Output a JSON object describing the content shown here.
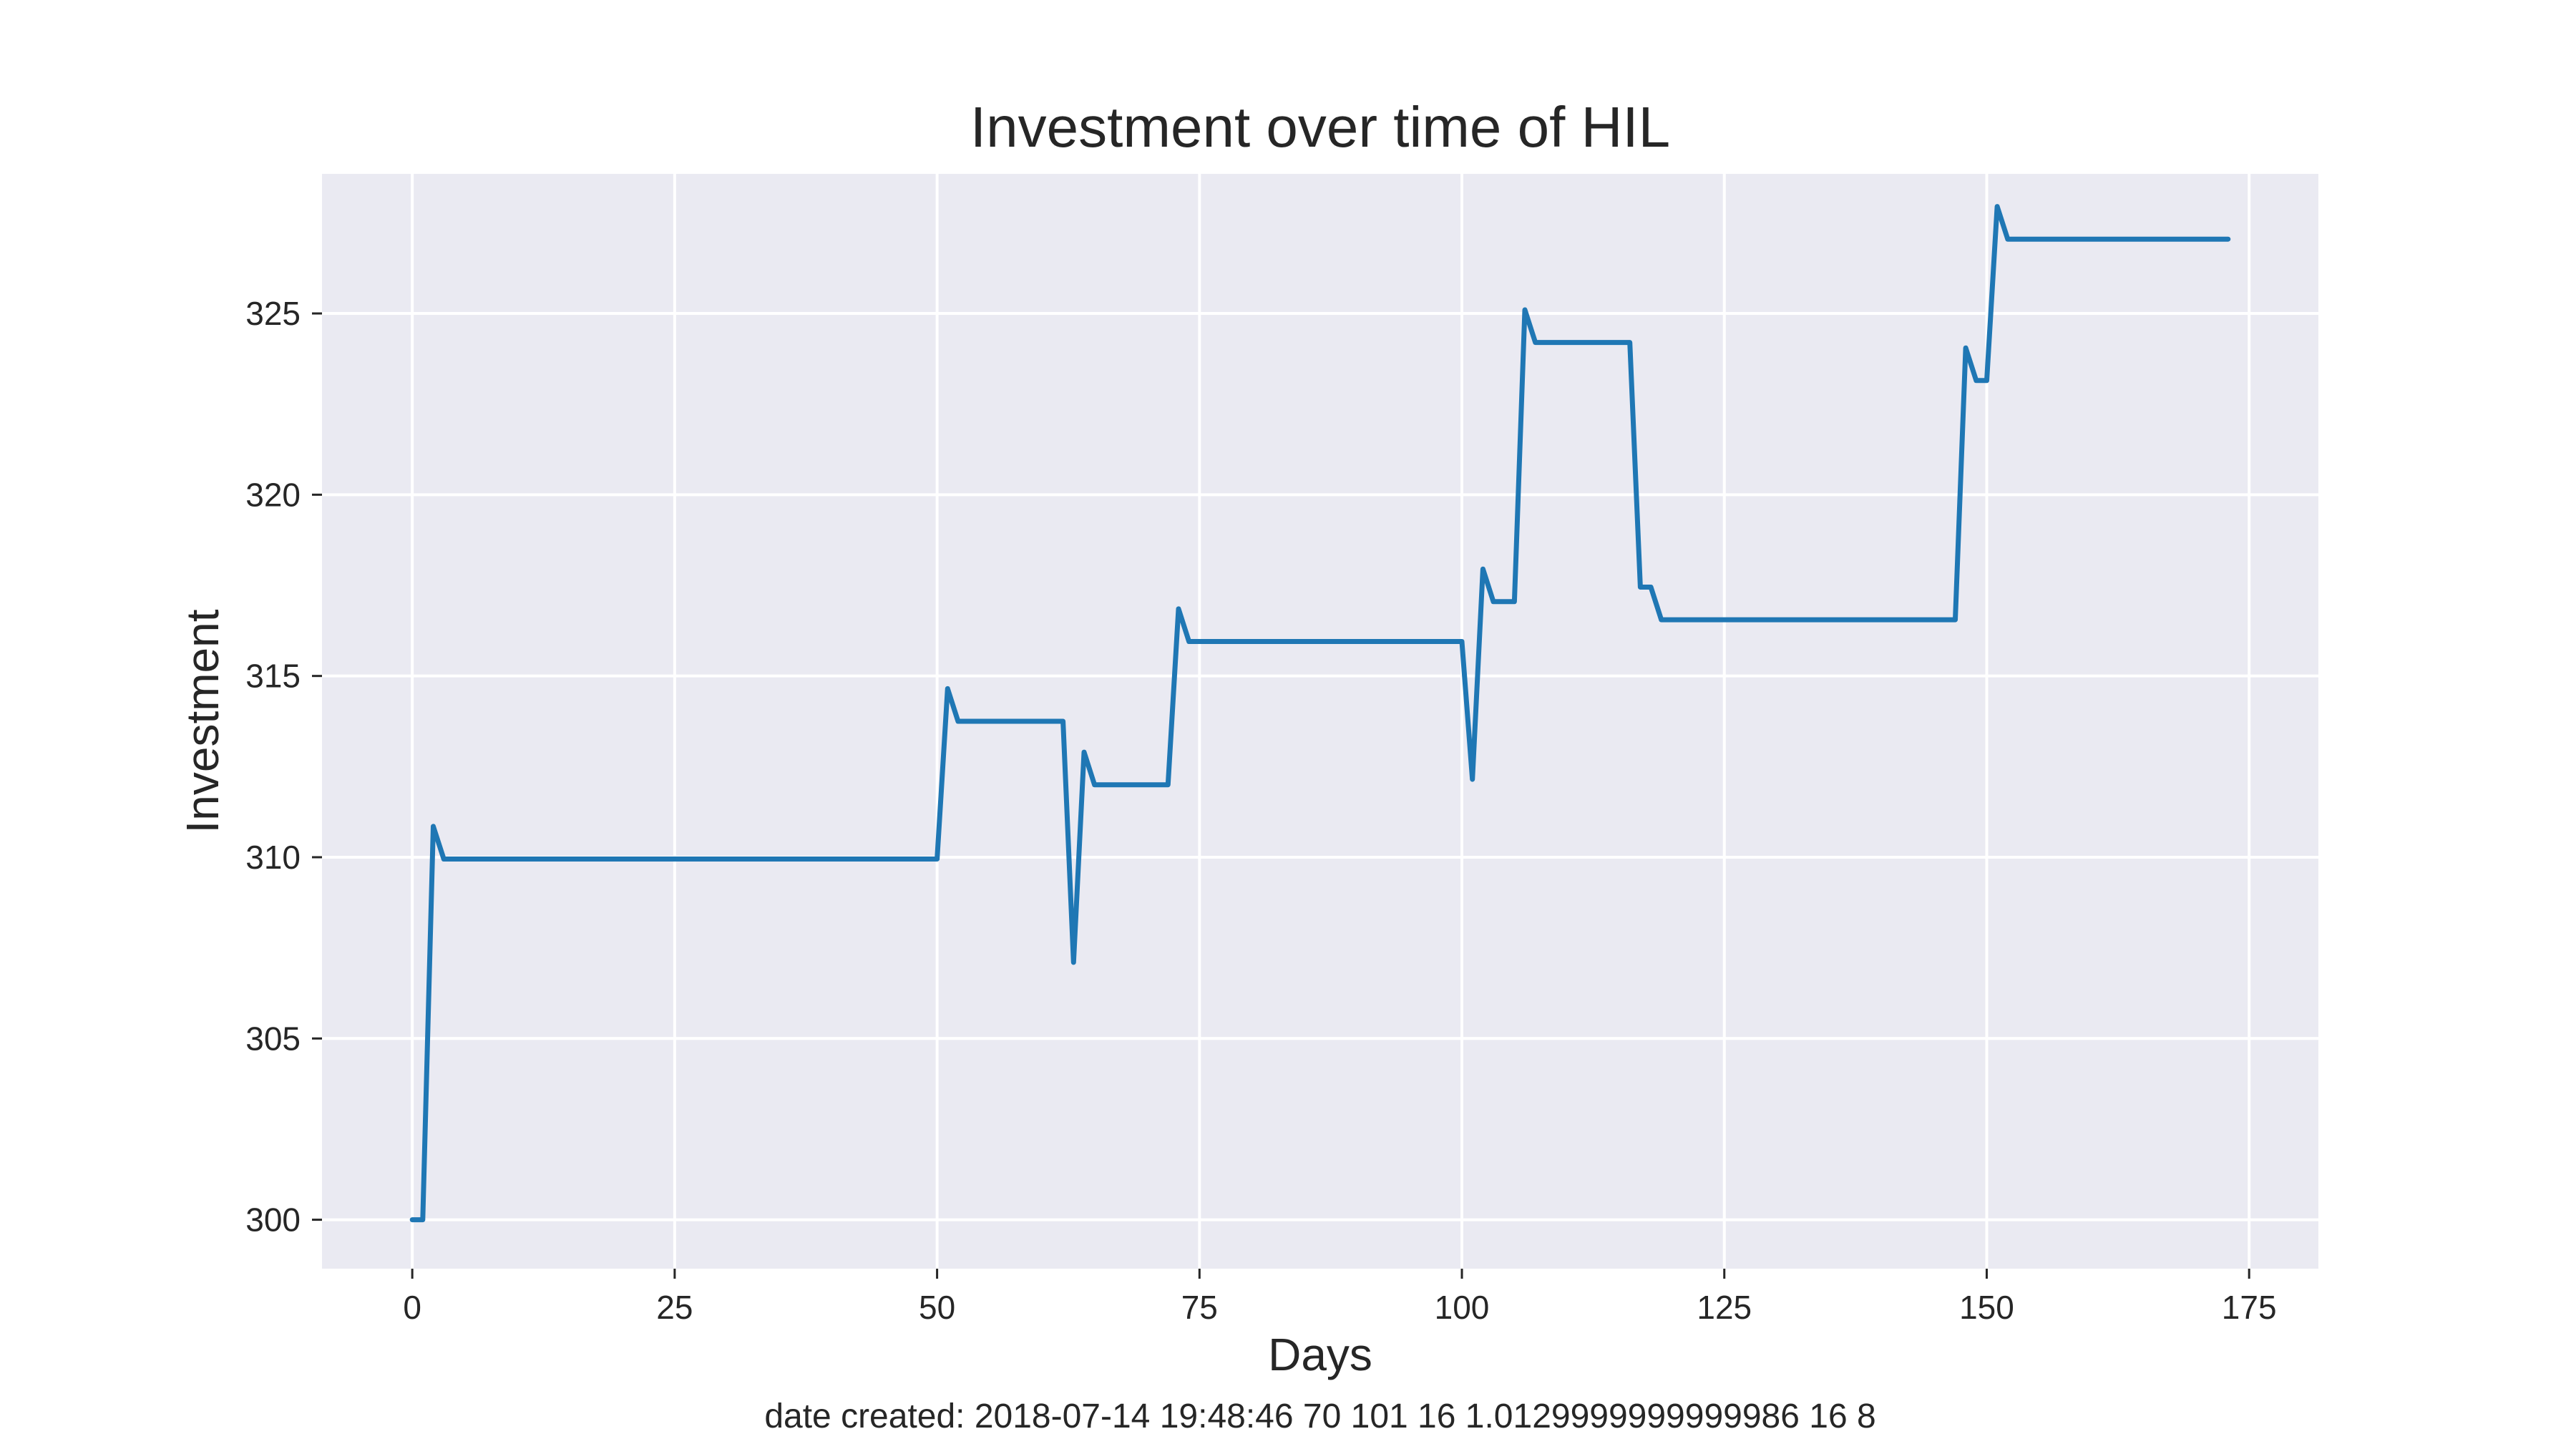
{
  "chart_data": {
    "type": "line",
    "title": "Investment over time of HIL",
    "xlabel": "Days",
    "ylabel": "Investment",
    "xlim": [
      -8.6,
      181.6
    ],
    "ylim": [
      298.65,
      328.85
    ],
    "xticks": [
      0,
      25,
      50,
      75,
      100,
      125,
      150,
      175
    ],
    "yticks": [
      300,
      305,
      310,
      315,
      320,
      325
    ],
    "grid": true,
    "legend": "none",
    "series": [
      {
        "color": "#1f77b4",
        "points": [
          [
            0,
            300
          ],
          [
            1,
            300
          ],
          [
            2,
            310.85
          ],
          [
            3,
            309.95
          ],
          [
            50,
            309.95
          ],
          [
            51,
            314.65
          ],
          [
            52,
            313.75
          ],
          [
            62,
            313.75
          ],
          [
            63,
            307.1
          ],
          [
            64,
            312.9
          ],
          [
            65,
            312.0
          ],
          [
            72,
            312.0
          ],
          [
            73,
            316.85
          ],
          [
            74,
            315.95
          ],
          [
            100,
            315.95
          ],
          [
            101,
            312.15
          ],
          [
            102,
            317.95
          ],
          [
            103,
            317.05
          ],
          [
            105,
            317.05
          ],
          [
            106,
            325.1
          ],
          [
            107,
            324.2
          ],
          [
            116,
            324.2
          ],
          [
            117,
            317.45
          ],
          [
            118,
            317.45
          ],
          [
            119,
            316.55
          ],
          [
            147,
            316.55
          ],
          [
            148,
            324.05
          ],
          [
            149,
            323.15
          ],
          [
            150,
            323.15
          ],
          [
            151,
            327.95
          ],
          [
            152,
            327.05
          ],
          [
            173,
            327.05
          ]
        ]
      }
    ]
  },
  "colors": {
    "plot_bg": "#eaeaf2",
    "grid": "#ffffff",
    "line": "#1f77b4",
    "text": "#262626"
  },
  "footer": "date created: 2018-07-14 19:48:46 70 101 16 1.0129999999999986 16 8"
}
